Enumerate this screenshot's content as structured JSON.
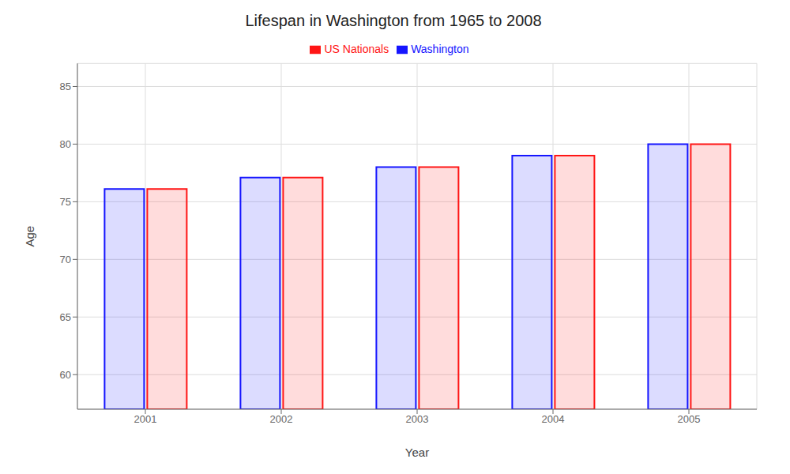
{
  "chart_data": {
    "type": "bar",
    "title": "Lifespan in Washington from 1965 to 2008",
    "xlabel": "Year",
    "ylabel": "Age",
    "categories": [
      "2001",
      "2002",
      "2003",
      "2004",
      "2005"
    ],
    "series": [
      {
        "name": "Washington",
        "color": "#1515ff",
        "values": [
          76.1,
          77.1,
          78.0,
          79.0,
          80.0
        ]
      },
      {
        "name": "US Nationals",
        "color": "#ff1515",
        "values": [
          76.1,
          77.1,
          78.0,
          79.0,
          80.0
        ]
      }
    ],
    "ylim": [
      57,
      87
    ],
    "yticks": [
      60,
      65,
      70,
      75,
      80,
      85
    ],
    "grid": true,
    "legend": "top"
  }
}
